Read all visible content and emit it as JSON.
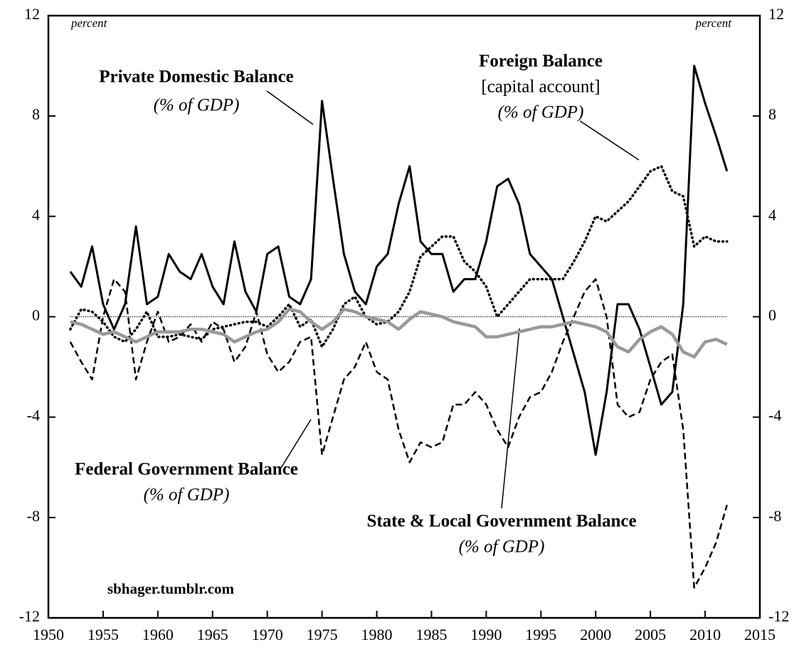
{
  "chart_data": {
    "type": "line",
    "annotations": [
      {
        "lines": [
          "Private Domestic Balance",
          "(% of GDP)"
        ]
      },
      {
        "lines": [
          "Foreign Balance",
          "[capital account]",
          "(% of GDP)"
        ]
      },
      {
        "lines": [
          "Federal Government Balance",
          "(% of GDP)"
        ]
      },
      {
        "lines": [
          "State & Local Government Balance",
          "(% of GDP)"
        ]
      }
    ],
    "y_label": "percent",
    "y2_label": "percent",
    "source": "sbhager.tumblr.com",
    "x": [
      1952,
      1953,
      1954,
      1955,
      1956,
      1957,
      1958,
      1959,
      1960,
      1961,
      1962,
      1963,
      1964,
      1965,
      1966,
      1967,
      1968,
      1969,
      1970,
      1971,
      1972,
      1973,
      1974,
      1975,
      1976,
      1977,
      1978,
      1979,
      1980,
      1981,
      1982,
      1983,
      1984,
      1985,
      1986,
      1987,
      1988,
      1989,
      1990,
      1991,
      1992,
      1993,
      1994,
      1995,
      1996,
      1997,
      1998,
      1999,
      2000,
      2001,
      2002,
      2003,
      2004,
      2005,
      2006,
      2007,
      2008,
      2009,
      2010,
      2011,
      2012
    ],
    "series": [
      {
        "name": "Private Domestic Balance",
        "color": "#000000",
        "style": "solid",
        "values": [
          1.8,
          1.2,
          2.8,
          0.5,
          -0.5,
          0.5,
          3.6,
          0.5,
          0.8,
          2.5,
          1.8,
          1.5,
          2.5,
          1.2,
          0.5,
          3.0,
          1.0,
          0.2,
          2.5,
          2.8,
          0.8,
          0.5,
          1.5,
          8.6,
          5.5,
          2.5,
          1.0,
          0.5,
          2.0,
          2.5,
          4.5,
          6.0,
          3.0,
          2.5,
          2.5,
          1.0,
          1.5,
          1.5,
          3.0,
          5.2,
          5.5,
          4.5,
          2.5,
          2.0,
          1.5,
          0.0,
          -1.5,
          -3.0,
          -5.5,
          -3.0,
          0.5,
          0.5,
          -0.5,
          -2.0,
          -3.5,
          -3.0,
          0.5,
          10.0,
          8.5,
          7.2,
          5.8
        ]
      },
      {
        "name": "Foreign Balance",
        "color": "#000000",
        "style": "dotted",
        "values": [
          -0.5,
          0.3,
          0.2,
          -0.2,
          -0.8,
          -1.0,
          -0.5,
          0.2,
          -0.8,
          -0.8,
          -0.7,
          -0.8,
          -0.9,
          -0.5,
          -0.4,
          -0.3,
          -0.2,
          -0.2,
          -0.4,
          0.0,
          0.5,
          -0.4,
          -0.1,
          -1.2,
          -0.5,
          0.5,
          0.8,
          0.0,
          -0.3,
          -0.2,
          0.2,
          1.0,
          2.4,
          2.8,
          3.2,
          3.2,
          2.2,
          1.8,
          1.2,
          0.0,
          0.5,
          1.0,
          1.5,
          1.5,
          1.5,
          1.5,
          2.2,
          3.0,
          4.0,
          3.8,
          4.2,
          4.6,
          5.2,
          5.8,
          6.0,
          5.0,
          4.8,
          2.8,
          3.2,
          3.0,
          3.0
        ]
      },
      {
        "name": "Federal Government Balance",
        "color": "#000000",
        "style": "dashed",
        "values": [
          -1.0,
          -1.8,
          -2.5,
          0.0,
          1.5,
          1.0,
          -2.5,
          -1.0,
          0.2,
          -1.0,
          -0.8,
          -0.3,
          -1.0,
          -0.2,
          -0.5,
          -1.8,
          -1.2,
          0.2,
          -1.5,
          -2.2,
          -1.8,
          -1.0,
          -0.8,
          -5.5,
          -4.0,
          -2.5,
          -2.0,
          -1.0,
          -2.2,
          -2.5,
          -4.5,
          -5.8,
          -5.0,
          -5.2,
          -5.0,
          -3.5,
          -3.5,
          -3.0,
          -3.5,
          -4.5,
          -5.2,
          -4.0,
          -3.2,
          -3.0,
          -2.2,
          -1.0,
          0.0,
          1.0,
          1.5,
          0.0,
          -3.5,
          -4.0,
          -3.8,
          -2.5,
          -1.8,
          -1.5,
          -4.5,
          -10.8,
          -10.0,
          -9.0,
          -7.5
        ]
      },
      {
        "name": "State & Local Government Balance",
        "color": "#999999",
        "style": "thick",
        "values": [
          -0.2,
          -0.3,
          -0.5,
          -0.7,
          -0.6,
          -0.8,
          -1.0,
          -0.8,
          -0.6,
          -0.6,
          -0.6,
          -0.5,
          -0.5,
          -0.6,
          -0.7,
          -1.0,
          -0.8,
          -0.6,
          -0.5,
          -0.2,
          0.3,
          0.2,
          -0.2,
          -0.5,
          -0.2,
          0.3,
          0.2,
          0.0,
          -0.1,
          -0.2,
          -0.5,
          -0.1,
          0.2,
          0.1,
          0.0,
          -0.2,
          -0.3,
          -0.4,
          -0.8,
          -0.8,
          -0.7,
          -0.6,
          -0.5,
          -0.4,
          -0.4,
          -0.3,
          -0.2,
          -0.3,
          -0.4,
          -0.6,
          -1.2,
          -1.4,
          -0.9,
          -0.6,
          -0.4,
          -0.7,
          -1.4,
          -1.6,
          -1.0,
          -0.9,
          -1.1
        ]
      }
    ],
    "xlim": [
      1950,
      2015
    ],
    "xticks": [
      1950,
      1955,
      1960,
      1965,
      1970,
      1975,
      1980,
      1985,
      1990,
      1995,
      2000,
      2005,
      2010,
      2015
    ],
    "ylim": [
      -12,
      12
    ],
    "yticks": [
      -12,
      -8,
      -4,
      0,
      4,
      8,
      12
    ],
    "y2lim": [
      -12,
      12
    ],
    "y2ticks": [
      -12,
      -8,
      -4,
      0,
      4,
      8,
      12
    ],
    "zero_line": true
  }
}
